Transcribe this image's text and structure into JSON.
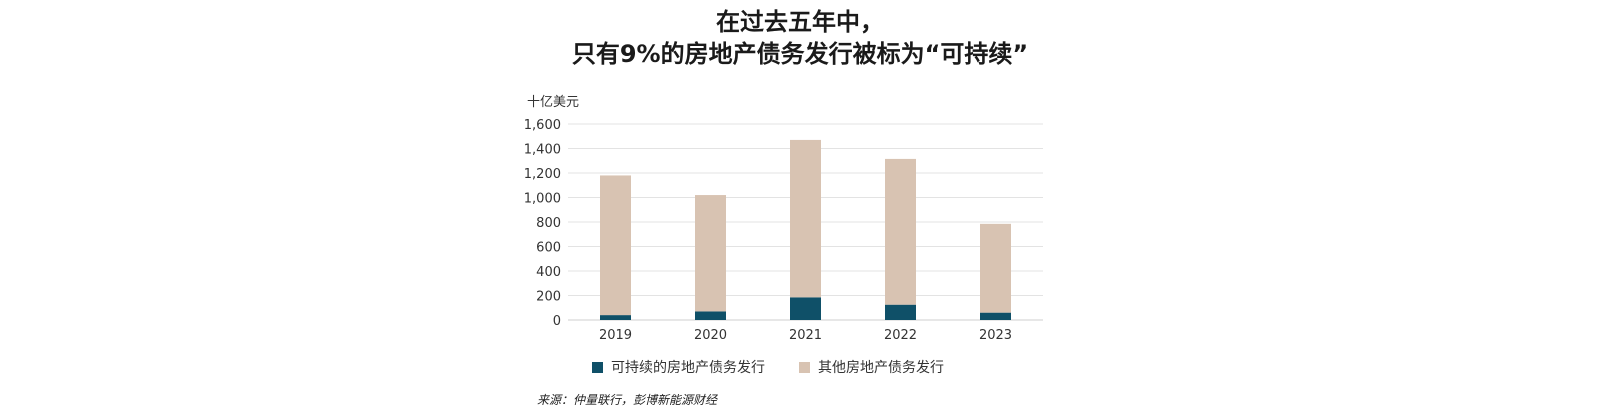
{
  "title": {
    "line1": "在过去五年中，",
    "line2": "只有9%的房地产债务发行被标为“可持续”"
  },
  "colors": {
    "sustainable": "#0f5068",
    "other": "#d8c3b2",
    "grid": "#e3e3e3"
  },
  "legend": {
    "sustainable_label": "可持续的房地产债务发行",
    "other_label": "其他房地产债务发行"
  },
  "source": "来源：仲量联行，彭博新能源财经",
  "chart_data": {
    "type": "bar",
    "stacked": true,
    "unit_label": "十亿美元",
    "categories": [
      "2019",
      "2020",
      "2021",
      "2022",
      "2023"
    ],
    "series": [
      {
        "name": "可持续的房地产债务发行",
        "values": [
          40,
          70,
          185,
          125,
          60
        ]
      },
      {
        "name": "其他房地产债务发行",
        "values": [
          1140,
          950,
          1285,
          1190,
          725
        ]
      }
    ],
    "ylim": [
      0,
      1600
    ],
    "yticks": [
      0,
      200,
      400,
      600,
      800,
      1000,
      1200,
      1400,
      1600
    ],
    "ytick_labels": [
      "0",
      "200",
      "400",
      "600",
      "800",
      "1,000",
      "1,200",
      "1,400",
      "1,600"
    ],
    "grid": true,
    "legend_position": "bottom"
  }
}
